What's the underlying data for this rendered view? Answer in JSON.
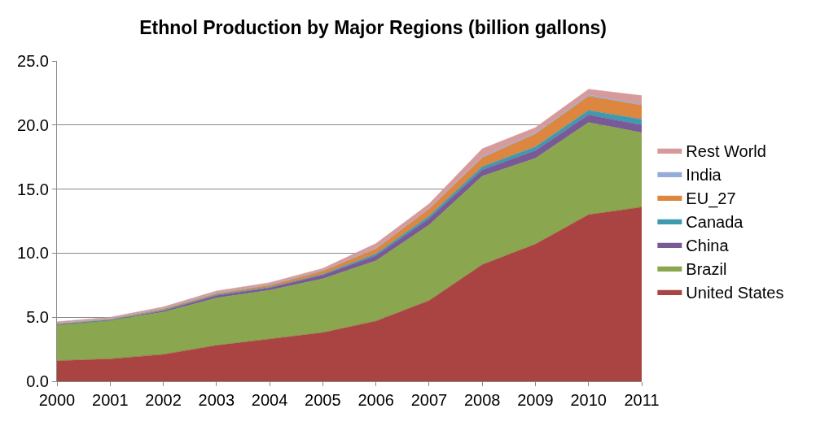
{
  "chart_data": {
    "type": "area",
    "stacked": true,
    "title": "Ethnol Production by Major Regions (billion gallons)",
    "x": [
      2000,
      2001,
      2002,
      2003,
      2004,
      2005,
      2006,
      2007,
      2008,
      2009,
      2010,
      2011
    ],
    "xlim": [
      2000,
      2011
    ],
    "xticks": [
      2000,
      2001,
      2002,
      2003,
      2004,
      2005,
      2006,
      2007,
      2008,
      2009,
      2010,
      2011
    ],
    "ylim": [
      0,
      25
    ],
    "yticks": [
      {
        "value": 0,
        "label": "0.0"
      },
      {
        "value": 5,
        "label": "5.0"
      },
      {
        "value": 10,
        "label": "10.0"
      },
      {
        "value": 15,
        "label": "15.0"
      },
      {
        "value": 20,
        "label": "20.0"
      },
      {
        "value": 25,
        "label": "25.0"
      }
    ],
    "grid": "y",
    "legend": "right",
    "series": [
      {
        "name": "United States",
        "color": "#a94442",
        "values": [
          1.6,
          1.75,
          2.1,
          2.8,
          3.3,
          3.8,
          4.7,
          6.3,
          9.1,
          10.7,
          13.0,
          13.6
        ]
      },
      {
        "name": "Brazil",
        "color": "#8aa64e",
        "values": [
          2.8,
          3.0,
          3.3,
          3.7,
          3.8,
          4.2,
          4.7,
          5.9,
          6.9,
          6.7,
          7.2,
          5.8
        ]
      },
      {
        "name": "China",
        "color": "#7a5a96",
        "values": [
          0.0,
          0.0,
          0.1,
          0.2,
          0.2,
          0.3,
          0.4,
          0.5,
          0.5,
          0.6,
          0.6,
          0.6
        ]
      },
      {
        "name": "Canada",
        "color": "#3f9ab0",
        "values": [
          0.05,
          0.05,
          0.05,
          0.05,
          0.05,
          0.06,
          0.15,
          0.2,
          0.25,
          0.3,
          0.35,
          0.45
        ]
      },
      {
        "name": "EU_27",
        "color": "#dc8640",
        "values": [
          0.05,
          0.05,
          0.1,
          0.1,
          0.15,
          0.25,
          0.4,
          0.55,
          0.7,
          1.0,
          1.1,
          1.1
        ]
      },
      {
        "name": "India",
        "color": "#94acd6",
        "values": [
          0.05,
          0.05,
          0.05,
          0.05,
          0.05,
          0.05,
          0.05,
          0.05,
          0.1,
          0.1,
          0.1,
          0.1
        ]
      },
      {
        "name": "Rest World",
        "color": "#d69a9a",
        "values": [
          0.1,
          0.1,
          0.1,
          0.15,
          0.15,
          0.15,
          0.35,
          0.35,
          0.6,
          0.4,
          0.45,
          0.65
        ]
      }
    ]
  }
}
